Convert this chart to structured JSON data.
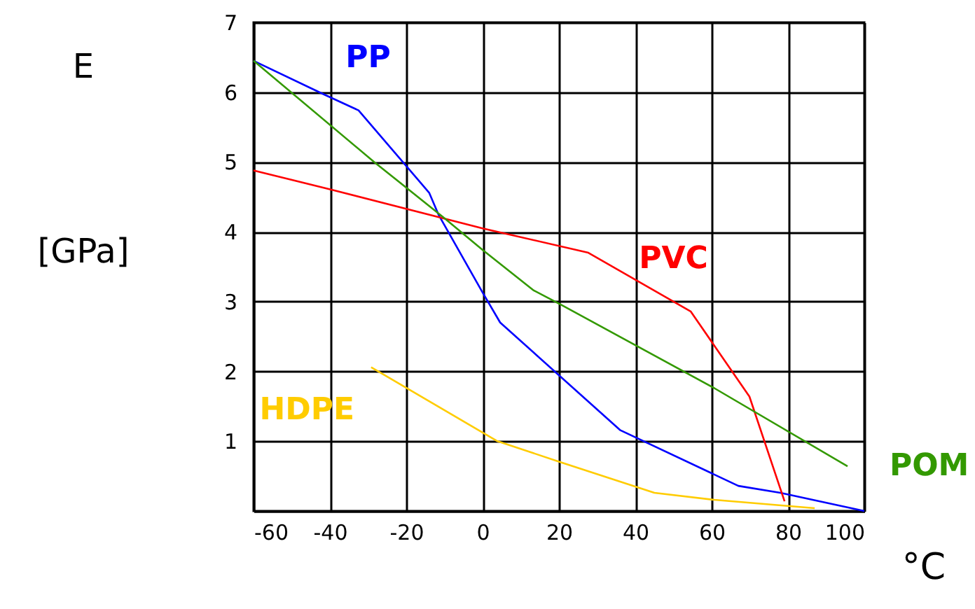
{
  "chart_data": {
    "type": "line",
    "xlabel": "°C",
    "ylabel": "E [GPa]",
    "xlim": [
      -60,
      100
    ],
    "ylim": [
      0,
      7
    ],
    "xticks": [
      -60,
      -40,
      -20,
      0,
      20,
      40,
      60,
      80,
      100
    ],
    "yticks": [
      {
        "value": 0,
        "label": null
      },
      1,
      2,
      3,
      4,
      5,
      6,
      7
    ],
    "grid": true,
    "marker": "none",
    "line_style": "solid",
    "series": [
      {
        "name": "PP",
        "color": "#0000ff",
        "x": [
          -60,
          -42,
          -32.5,
          -14,
          -11.5,
          0,
          4.6,
          36,
          67,
          78,
          100
        ],
        "values": [
          6.45,
          5.98,
          5.74,
          4.56,
          4.24,
          3.13,
          2.7,
          1.16,
          0.36,
          0.26,
          0
        ]
      },
      {
        "name": "PVC",
        "color": "#ff0000",
        "x": [
          -60,
          -39.4,
          0,
          27.7,
          54.5,
          69.9,
          79.1
        ],
        "values": [
          4.88,
          4.6,
          4.05,
          3.7,
          2.86,
          1.64,
          0.14
        ]
      },
      {
        "name": "HDPE",
        "color": "#ffcc00",
        "x": [
          -29.2,
          3.9,
          20.4,
          45,
          60.7,
          87
        ],
        "values": [
          2.06,
          1.0,
          0.7,
          0.26,
          0.16,
          0.04
        ]
      },
      {
        "name": "POM",
        "color": "#339900",
        "x": [
          -60,
          -28.4,
          -10.1,
          0,
          13.4,
          20.4,
          60.7,
          95.6
        ],
        "values": [
          6.45,
          5.0,
          4.2,
          3.74,
          3.16,
          2.96,
          1.76,
          0.64
        ]
      }
    ]
  }
}
